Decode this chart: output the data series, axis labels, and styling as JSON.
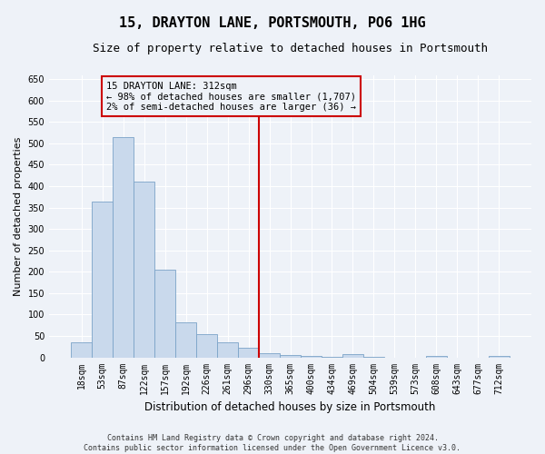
{
  "title": "15, DRAYTON LANE, PORTSMOUTH, PO6 1HG",
  "subtitle": "Size of property relative to detached houses in Portsmouth",
  "xlabel": "Distribution of detached houses by size in Portsmouth",
  "ylabel": "Number of detached properties",
  "bar_labels": [
    "18sqm",
    "53sqm",
    "87sqm",
    "122sqm",
    "157sqm",
    "192sqm",
    "226sqm",
    "261sqm",
    "296sqm",
    "330sqm",
    "365sqm",
    "400sqm",
    "434sqm",
    "469sqm",
    "504sqm",
    "539sqm",
    "573sqm",
    "608sqm",
    "643sqm",
    "677sqm",
    "712sqm"
  ],
  "bar_heights": [
    36,
    365,
    515,
    410,
    205,
    82,
    54,
    35,
    22,
    10,
    6,
    3,
    2,
    8,
    2,
    0,
    0,
    4,
    0,
    0,
    3
  ],
  "bar_color": "#c9d9ec",
  "bar_edge_color": "#7ba3c8",
  "vline_x": 8.5,
  "vline_color": "#cc0000",
  "annotation_text": "15 DRAYTON LANE: 312sqm\n← 98% of detached houses are smaller (1,707)\n2% of semi-detached houses are larger (36) →",
  "annotation_box_color": "#cc0000",
  "ylim": [
    0,
    660
  ],
  "yticks": [
    0,
    50,
    100,
    150,
    200,
    250,
    300,
    350,
    400,
    450,
    500,
    550,
    600,
    650
  ],
  "footnote": "Contains HM Land Registry data © Crown copyright and database right 2024.\nContains public sector information licensed under the Open Government Licence v3.0.",
  "bg_color": "#eef2f8",
  "grid_color": "#ffffff",
  "title_fontsize": 11,
  "subtitle_fontsize": 9,
  "tick_fontsize": 7,
  "ylabel_fontsize": 8,
  "xlabel_fontsize": 8.5,
  "footnote_fontsize": 6,
  "annotation_fontsize": 7.5
}
